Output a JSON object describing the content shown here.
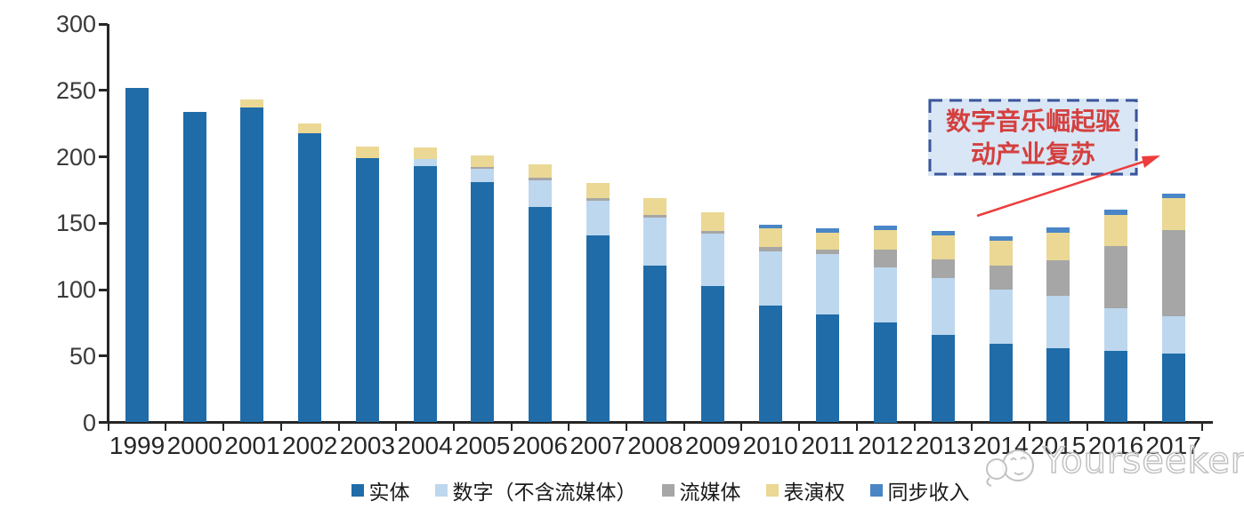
{
  "chart_data": {
    "type": "bar",
    "stacked": true,
    "title": "",
    "xlabel": "",
    "ylabel": "",
    "ylim": [
      0,
      300
    ],
    "yticks": [
      0,
      50,
      100,
      150,
      200,
      250,
      300
    ],
    "grid": "off",
    "legend_position": "bottom",
    "categories": [
      "1999",
      "2000",
      "2001",
      "2002",
      "2003",
      "2004",
      "2005",
      "2006",
      "2007",
      "2008",
      "2009",
      "2010",
      "2011",
      "2012",
      "2013",
      "2014",
      "2015",
      "2016",
      "2017"
    ],
    "series": [
      {
        "name": "实体",
        "color": "#1f6ca8",
        "values": [
          252,
          234,
          237,
          218,
          199,
          193,
          181,
          162,
          141,
          118,
          103,
          88,
          81,
          75,
          66,
          59,
          56,
          54,
          52
        ]
      },
      {
        "name": "数字（不含流媒体）",
        "color": "#bdd7ee",
        "values": [
          0,
          0,
          0,
          0,
          0,
          5,
          10,
          20,
          26,
          36,
          39,
          41,
          46,
          42,
          43,
          41,
          39,
          32,
          28
        ]
      },
      {
        "name": "流媒体",
        "color": "#a6a6a6",
        "values": [
          0,
          0,
          0,
          0,
          0,
          0,
          1,
          2,
          2,
          2,
          2,
          3,
          3,
          13,
          14,
          18,
          27,
          47,
          65
        ]
      },
      {
        "name": "表演权",
        "color": "#ead894",
        "values": [
          0,
          0,
          6,
          7,
          9,
          9,
          9,
          10,
          11,
          13,
          14,
          14,
          13,
          15,
          18,
          19,
          21,
          23,
          24
        ]
      },
      {
        "name": "同步收入",
        "color": "#4a86c6",
        "values": [
          0,
          0,
          0,
          0,
          0,
          0,
          0,
          0,
          0,
          0,
          0,
          3,
          3,
          3,
          3,
          3,
          4,
          4,
          3
        ]
      }
    ],
    "annotation": {
      "text": "数字音乐崛起驱动产业复苏",
      "lines": [
        "数字音乐崛起驱",
        "动产业复苏"
      ],
      "text_color": "#d4403f",
      "fill_color": "#d9e6f5",
      "border_color": "#3a569b",
      "arrow_color": "#ee3c3c"
    },
    "watermark": {
      "text": "Yourseeker",
      "color": "#c2c2c2"
    }
  },
  "colors": {
    "axis": "#262626",
    "tick_label": "#3a3a3a",
    "category_label": "#262626",
    "background": "#ffffff"
  }
}
